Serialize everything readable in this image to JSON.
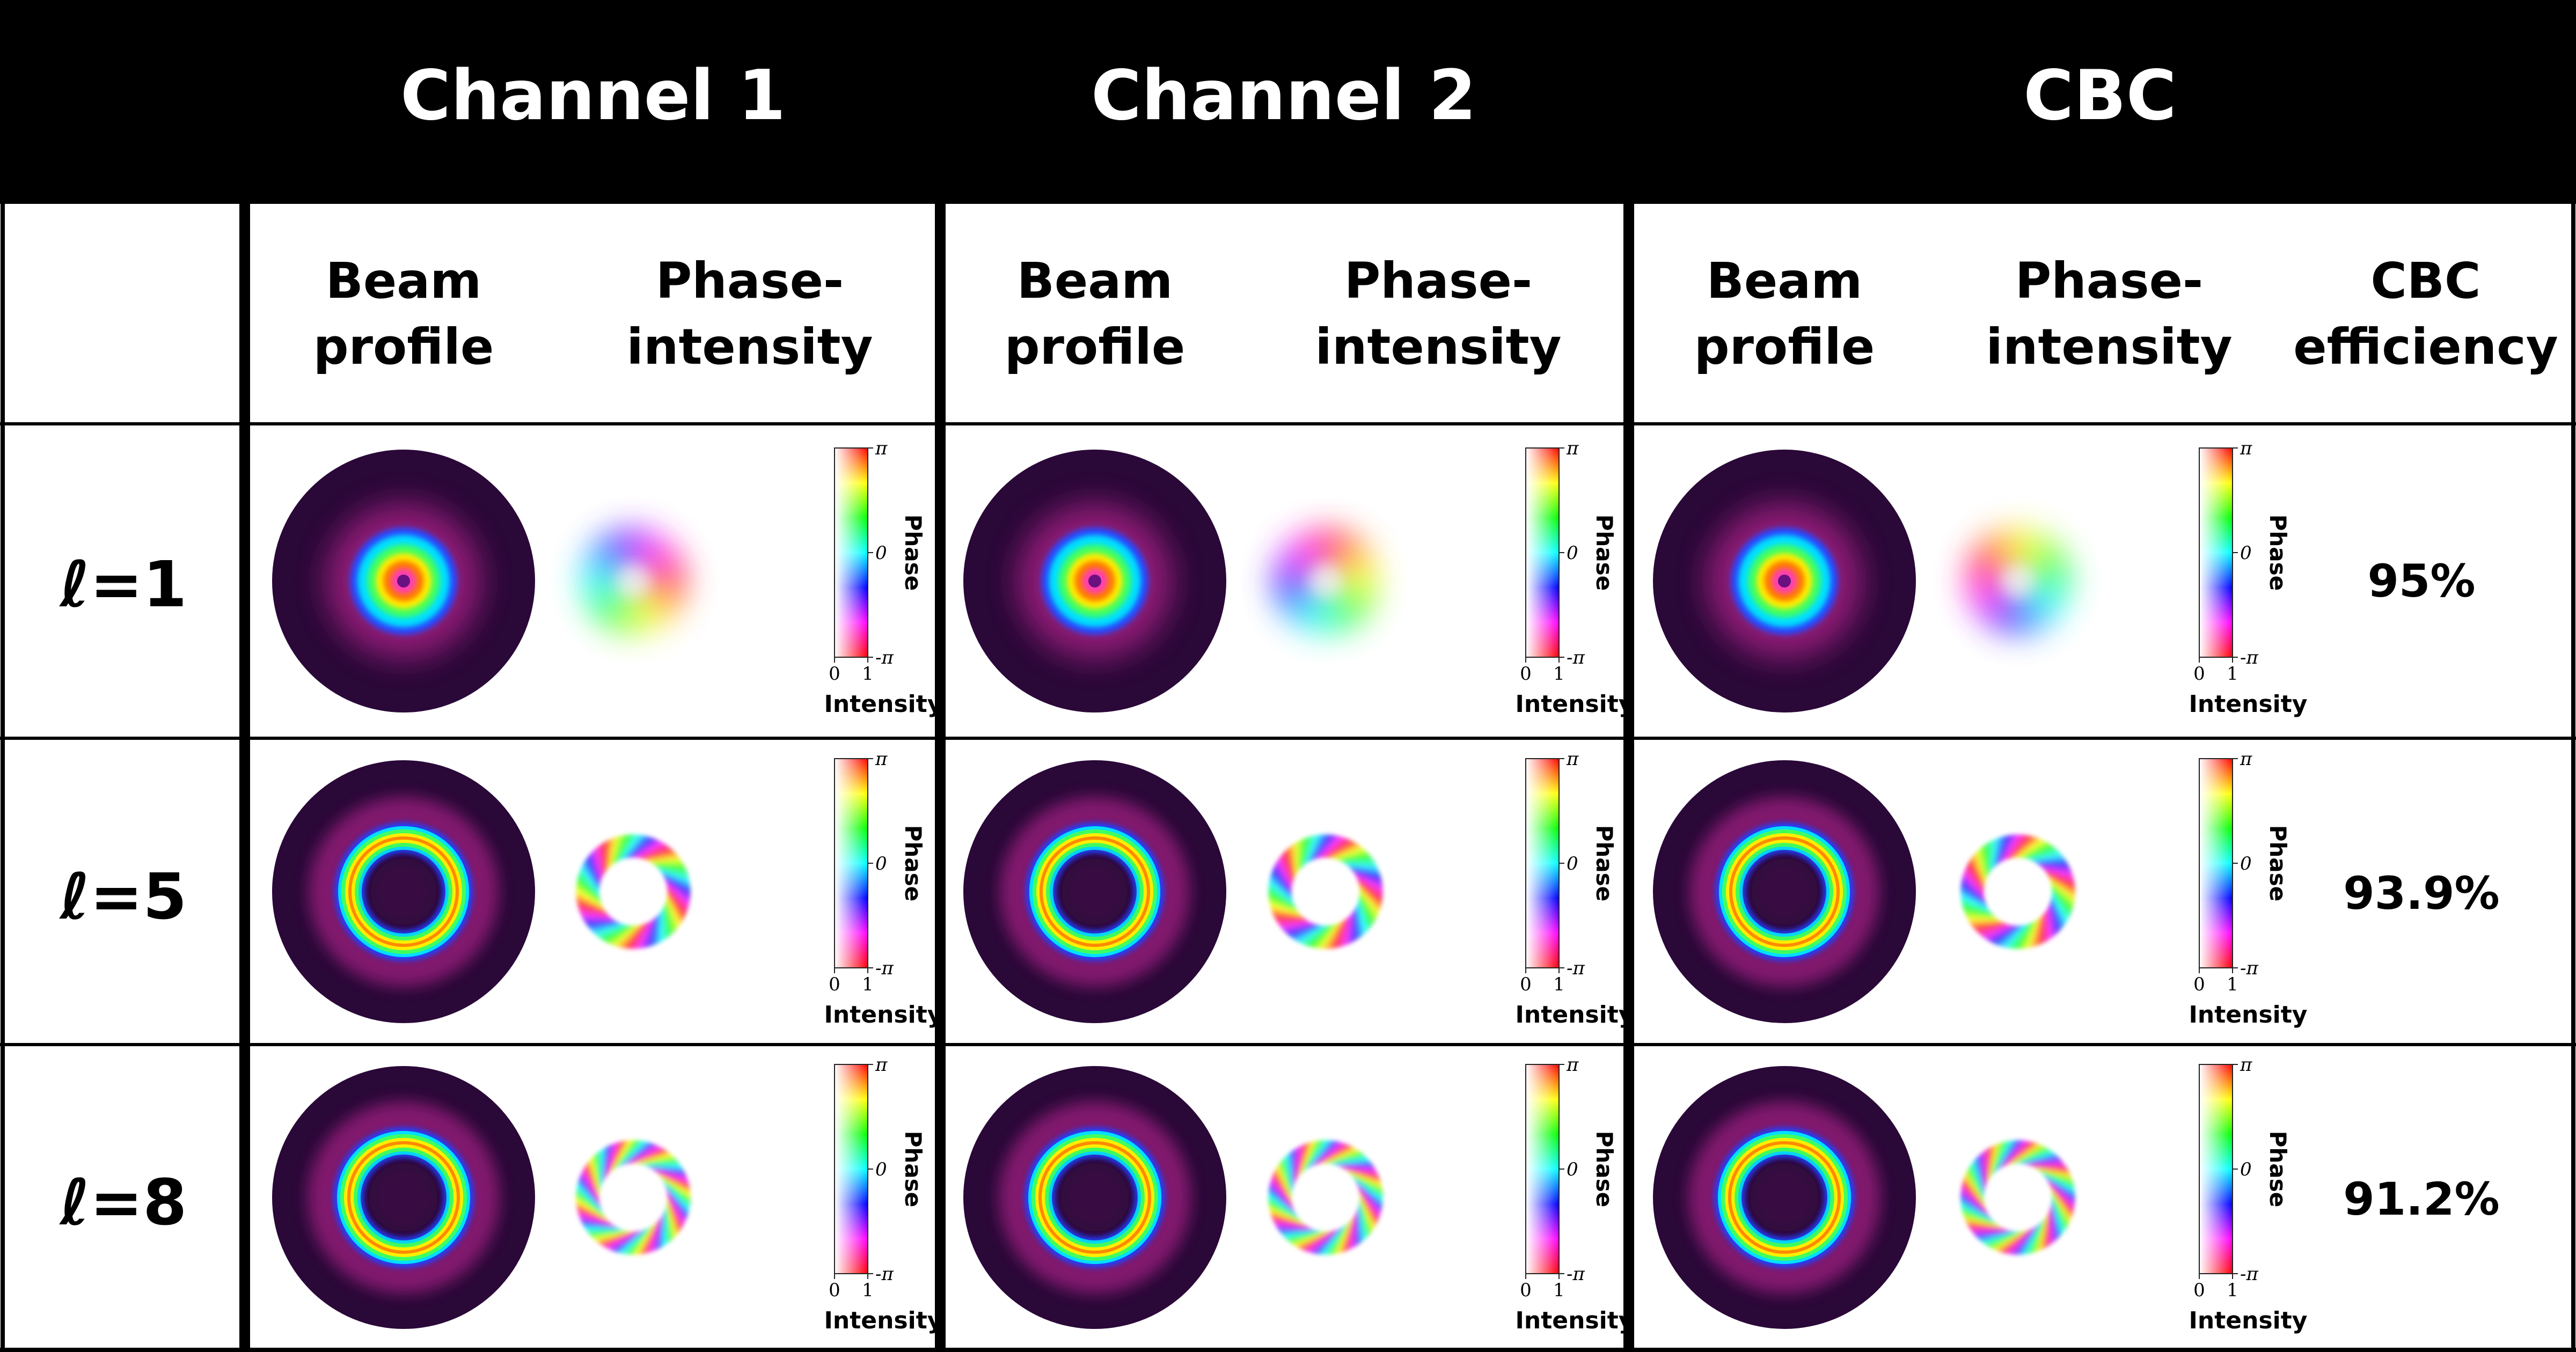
{
  "header": {
    "groups": [
      "Channel 1",
      "Channel 2",
      "CBC"
    ]
  },
  "subheaders": {
    "beam_profile": [
      "Beam",
      "profile"
    ],
    "phase_intensity": [
      "Phase-",
      "intensity"
    ],
    "cbc_efficiency": [
      "CBC",
      "efficiency"
    ]
  },
  "rows": [
    {
      "label": "ℓ=1",
      "l": 1,
      "efficiency": "95%"
    },
    {
      "label": "ℓ=5",
      "l": 5,
      "efficiency": "93.9%"
    },
    {
      "label": "ℓ=8",
      "l": 8,
      "efficiency": "91.2%"
    }
  ],
  "colorbar": {
    "phase_label": "Phase",
    "phase_top": "π",
    "phase_mid": "0",
    "phase_bottom": "-π",
    "intensity_label": "Intensity",
    "intensity_min": "0",
    "intensity_max": "1"
  },
  "colors": {
    "header_bg": "#000000",
    "beam_bg": "#2a0838",
    "text": "#000000",
    "header_text": "#ffffff"
  }
}
